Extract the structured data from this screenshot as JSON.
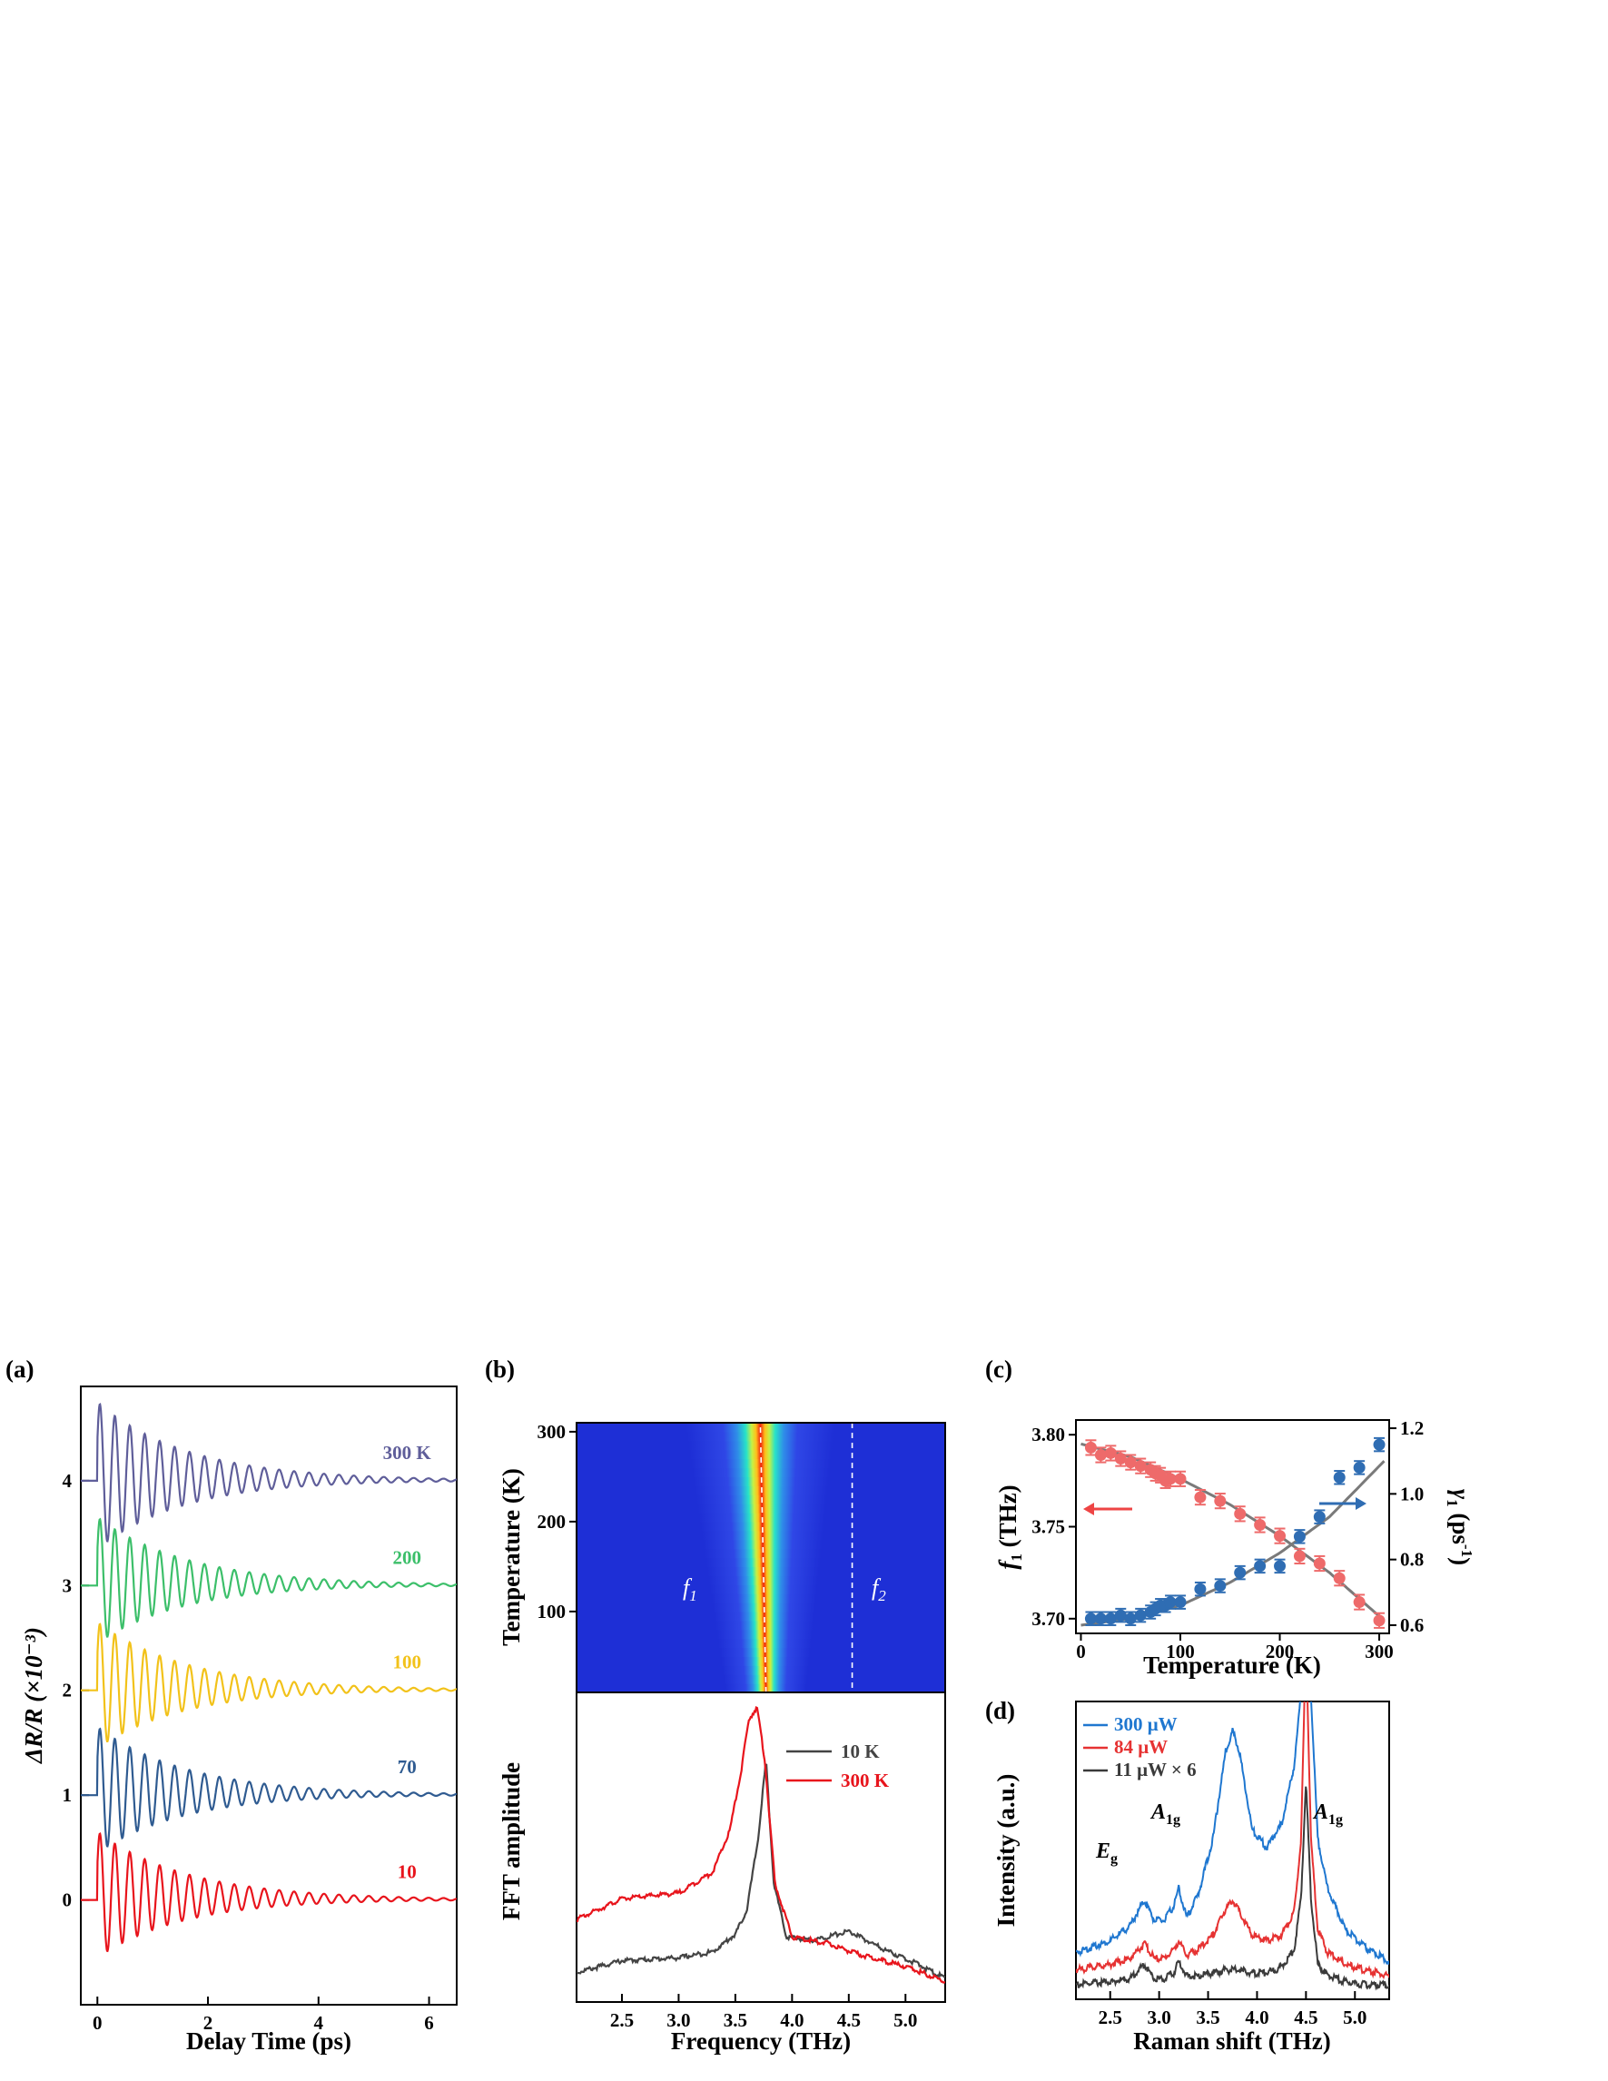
{
  "colors": {
    "red": "#e8141c",
    "blue": "#2f6db3",
    "green": "#3cbf6a",
    "gold": "#f2c21a",
    "purple": "#5f5e9a",
    "navy": "#2f5b91",
    "gray": "#444444",
    "pink": "#ee6a6a",
    "fit": "#7a7a7a",
    "raman_blue": "#1f77d0",
    "raman_red": "#e63232",
    "raman_black": "#3a3a3a"
  },
  "panel_labels": [
    "(a)",
    "(b)",
    "(c)",
    "(d)"
  ],
  "chart_data": [
    {
      "id": "a",
      "type": "line",
      "xlabel": "Delay Time (ps)",
      "ylabel": "ΔR/R (×10⁻³)",
      "xlim": [
        -0.3,
        6.5
      ],
      "ylim": [
        -1.0,
        4.9
      ],
      "xticks": [
        0,
        2,
        4,
        6
      ],
      "yticks": [
        0,
        1,
        2,
        3,
        4
      ],
      "series": [
        {
          "name": "10",
          "offset": 0,
          "amplitude": 0.6,
          "color": "#e8141c"
        },
        {
          "name": "70",
          "offset": 1,
          "amplitude": 0.6,
          "color": "#2f5b91"
        },
        {
          "name": "100",
          "offset": 2,
          "amplitude": 0.6,
          "color": "#f2c21a"
        },
        {
          "name": "200",
          "offset": 3,
          "amplitude": 0.6,
          "color": "#3cbf6a"
        },
        {
          "name": "300 K",
          "offset": 4,
          "amplitude": 0.7,
          "color": "#5f5e9a"
        }
      ]
    },
    {
      "id": "b-top",
      "type": "heatmap",
      "ylabel": "Temperature (K)",
      "xlim": [
        2.1,
        5.35
      ],
      "ylim": [
        10,
        310
      ],
      "yticks": [
        100,
        200,
        300
      ],
      "annotations": [
        "f1",
        "f2"
      ],
      "peak_f1": {
        "T": [
          10,
          300
        ],
        "x": [
          3.77,
          3.72
        ]
      },
      "f2_line_x": 4.53
    },
    {
      "id": "b-bottom",
      "type": "line",
      "xlabel": "Frequency (THz)",
      "ylabel": "FFT amplitude",
      "xlim": [
        2.1,
        5.35
      ],
      "xticks": [
        2.5,
        3.0,
        3.5,
        4.0,
        4.5,
        5.0
      ],
      "series": [
        {
          "name": "10 K",
          "color": "#444444",
          "x": [
            2.1,
            2.5,
            3.0,
            3.3,
            3.5,
            3.6,
            3.7,
            3.77,
            3.84,
            3.95,
            4.2,
            4.5,
            4.8,
            5.1,
            5.35
          ],
          "y": [
            0.1,
            0.14,
            0.15,
            0.17,
            0.23,
            0.31,
            0.55,
            0.82,
            0.4,
            0.22,
            0.21,
            0.24,
            0.18,
            0.13,
            0.08
          ]
        },
        {
          "name": "300 K",
          "color": "#e8141c",
          "x": [
            2.1,
            2.5,
            3.0,
            3.3,
            3.45,
            3.55,
            3.62,
            3.69,
            3.76,
            3.85,
            4.0,
            4.3,
            4.6,
            5.0,
            5.35
          ],
          "y": [
            0.28,
            0.35,
            0.37,
            0.44,
            0.58,
            0.78,
            0.96,
            1.0,
            0.82,
            0.4,
            0.22,
            0.2,
            0.16,
            0.12,
            0.07
          ]
        }
      ]
    },
    {
      "id": "c",
      "type": "scatter",
      "xlabel": "Temperature (K)",
      "ylabel_left": "f1 (THz)",
      "ylabel_right": "γ1 (ps⁻¹)",
      "xlim": [
        -5,
        310
      ],
      "ylim_left": [
        3.692,
        3.808
      ],
      "ylim_right": [
        0.575,
        1.225
      ],
      "xticks": [
        0,
        100,
        200,
        300
      ],
      "yticks_left": [
        3.7,
        3.75,
        3.8
      ],
      "yticks_right": [
        0.6,
        0.8,
        1.0,
        1.2
      ],
      "series": [
        {
          "name": "f1",
          "axis": "left",
          "color": "#ee6a6a",
          "T": [
            10,
            20,
            30,
            40,
            50,
            60,
            70,
            75,
            80,
            85,
            90,
            100,
            120,
            140,
            160,
            180,
            200,
            220,
            240,
            260,
            280,
            300
          ],
          "values": [
            3.793,
            3.789,
            3.79,
            3.787,
            3.785,
            3.783,
            3.781,
            3.779,
            3.778,
            3.775,
            3.776,
            3.776,
            3.766,
            3.764,
            3.757,
            3.751,
            3.745,
            3.734,
            3.73,
            3.722,
            3.709,
            3.699
          ],
          "err": 0.004
        },
        {
          "name": "γ1",
          "axis": "right",
          "color": "#2f6db3",
          "T": [
            10,
            20,
            30,
            40,
            50,
            60,
            70,
            75,
            80,
            85,
            90,
            100,
            120,
            140,
            160,
            180,
            200,
            220,
            240,
            260,
            280,
            300
          ],
          "values": [
            0.62,
            0.62,
            0.62,
            0.63,
            0.62,
            0.63,
            0.64,
            0.65,
            0.66,
            0.66,
            0.67,
            0.67,
            0.71,
            0.72,
            0.76,
            0.78,
            0.78,
            0.87,
            0.93,
            1.05,
            1.08,
            1.15
          ],
          "err": 0.02
        }
      ],
      "fits": [
        {
          "axis": "left",
          "T": [
            0,
            50,
            100,
            150,
            200,
            250,
            305
          ],
          "values": [
            3.795,
            3.788,
            3.776,
            3.762,
            3.745,
            3.725,
            3.699
          ]
        },
        {
          "axis": "right",
          "T": [
            0,
            50,
            100,
            150,
            200,
            250,
            305
          ],
          "values": [
            0.6,
            0.62,
            0.66,
            0.73,
            0.82,
            0.93,
            1.1
          ]
        }
      ]
    },
    {
      "id": "d",
      "type": "line",
      "xlabel": "Raman shift (THz)",
      "ylabel": "Intensity (a.u.)",
      "xlim": [
        2.15,
        5.35
      ],
      "xticks": [
        2.5,
        3.0,
        3.5,
        4.0,
        4.5,
        5.0
      ],
      "annotations": [
        "Eg",
        "A1g",
        "A1g"
      ],
      "series": [
        {
          "name": "300 μW",
          "color": "#1f77d0",
          "x": [
            2.15,
            2.5,
            2.7,
            2.85,
            2.95,
            3.05,
            3.15,
            3.2,
            3.28,
            3.4,
            3.55,
            3.68,
            3.75,
            3.82,
            3.95,
            4.1,
            4.25,
            4.38,
            4.45,
            4.5,
            4.55,
            4.62,
            4.72,
            4.9,
            5.1,
            5.35
          ],
          "y": [
            0.16,
            0.2,
            0.25,
            0.34,
            0.27,
            0.27,
            0.32,
            0.38,
            0.28,
            0.36,
            0.55,
            0.85,
            0.92,
            0.85,
            0.58,
            0.52,
            0.6,
            0.8,
            1.05,
            1.25,
            1.05,
            0.55,
            0.38,
            0.24,
            0.18,
            0.13
          ]
        },
        {
          "name": "84 μW",
          "color": "#e63232",
          "x": [
            2.15,
            2.5,
            2.7,
            2.85,
            2.95,
            3.05,
            3.15,
            3.2,
            3.28,
            3.4,
            3.55,
            3.68,
            3.75,
            3.82,
            3.95,
            4.1,
            4.25,
            4.38,
            4.45,
            4.5,
            4.55,
            4.62,
            4.72,
            4.9,
            5.1,
            5.35
          ],
          "y": [
            0.1,
            0.12,
            0.14,
            0.19,
            0.14,
            0.14,
            0.17,
            0.2,
            0.15,
            0.17,
            0.22,
            0.31,
            0.34,
            0.3,
            0.22,
            0.2,
            0.22,
            0.3,
            0.55,
            1.25,
            0.55,
            0.24,
            0.16,
            0.12,
            0.1,
            0.08
          ]
        },
        {
          "name": "11 μW × 6",
          "color": "#3a3a3a",
          "x": [
            2.15,
            2.5,
            2.7,
            2.85,
            2.95,
            3.05,
            3.15,
            3.2,
            3.28,
            3.4,
            3.55,
            3.68,
            3.75,
            3.82,
            3.95,
            4.1,
            4.25,
            4.38,
            4.45,
            4.5,
            4.55,
            4.62,
            4.72,
            4.9,
            5.1,
            5.35
          ],
          "y": [
            0.05,
            0.06,
            0.07,
            0.12,
            0.07,
            0.07,
            0.09,
            0.13,
            0.08,
            0.08,
            0.09,
            0.1,
            0.1,
            0.1,
            0.09,
            0.09,
            0.11,
            0.17,
            0.35,
            0.75,
            0.35,
            0.12,
            0.08,
            0.06,
            0.05,
            0.05
          ]
        }
      ]
    }
  ]
}
